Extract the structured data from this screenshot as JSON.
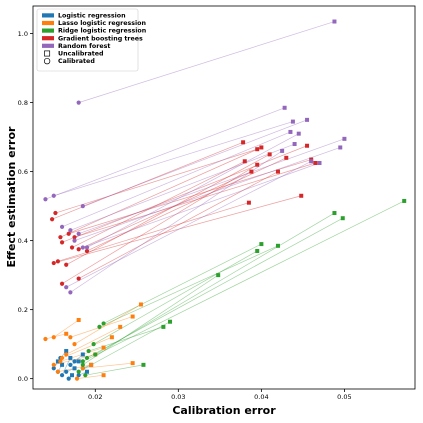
{
  "chart_data": {
    "type": "scatter",
    "xlabel": "Calibration error",
    "ylabel": "Effect estimation error",
    "xlim": [
      0.0125,
      0.0585
    ],
    "ylim": [
      -0.03,
      1.08
    ],
    "xticks": [
      0.02,
      0.03,
      0.04,
      0.05
    ],
    "xtick_labels": [
      "0.02",
      "0.03",
      "0.04",
      "0.05"
    ],
    "yticks": [
      0.0,
      0.2,
      0.4,
      0.6,
      0.8,
      1.0
    ],
    "ytick_labels": [
      "0.0",
      "0.2",
      "0.4",
      "0.6",
      "0.8",
      "1.0"
    ],
    "legend_position": "top-left",
    "marker_legend": [
      {
        "label": "Uncalibrated",
        "marker": "square"
      },
      {
        "label": "Calibrated",
        "marker": "circle"
      }
    ],
    "series": [
      {
        "name": "Logistic regression",
        "color": "#1f77b4",
        "pairs": [
          {
            "uncal": [
              0.0155,
              0.05
            ],
            "cal": [
              0.015,
              0.03
            ]
          },
          {
            "uncal": [
              0.016,
              0.04
            ],
            "cal": [
              0.0155,
              0.02
            ]
          },
          {
            "uncal": [
              0.017,
              0.06
            ],
            "cal": [
              0.016,
              0.01
            ]
          },
          {
            "uncal": [
              0.0175,
              0.03
            ],
            "cal": [
              0.0165,
              0.02
            ]
          },
          {
            "uncal": [
              0.018,
              0.05
            ],
            "cal": [
              0.017,
              0.04
            ]
          },
          {
            "uncal": [
              0.0185,
              0.07
            ],
            "cal": [
              0.0175,
              0.05
            ]
          },
          {
            "uncal": [
              0.019,
              0.02
            ],
            "cal": [
              0.018,
              0.01
            ]
          },
          {
            "uncal": [
              0.0195,
              0.04
            ],
            "cal": [
              0.0185,
              0.03
            ]
          },
          {
            "uncal": [
              0.0165,
              0.08
            ],
            "cal": [
              0.0158,
              0.06
            ]
          },
          {
            "uncal": [
              0.0172,
              0.01
            ],
            "cal": [
              0.0168,
              0.0
            ]
          }
        ]
      },
      {
        "name": "Lasso logistic regression",
        "color": "#ff7f0e",
        "pairs": [
          {
            "uncal": [
              0.0255,
              0.215
            ],
            "cal": [
              0.0175,
              0.1
            ]
          },
          {
            "uncal": [
              0.0245,
              0.18
            ],
            "cal": [
              0.017,
              0.12
            ]
          },
          {
            "uncal": [
              0.023,
              0.15
            ],
            "cal": [
              0.0165,
              0.07
            ]
          },
          {
            "uncal": [
              0.022,
              0.12
            ],
            "cal": [
              0.016,
              0.06
            ]
          },
          {
            "uncal": [
              0.021,
              0.09
            ],
            "cal": [
              0.0158,
              0.05
            ]
          },
          {
            "uncal": [
              0.02,
              0.07
            ],
            "cal": [
              0.015,
              0.04
            ]
          },
          {
            "uncal": [
              0.0195,
              0.04
            ],
            "cal": [
              0.0155,
              0.02
            ]
          },
          {
            "uncal": [
              0.0245,
              0.045
            ],
            "cal": [
              0.0185,
              0.03
            ]
          },
          {
            "uncal": [
              0.018,
              0.17
            ],
            "cal": [
              0.015,
              0.12
            ]
          },
          {
            "uncal": [
              0.0165,
              0.13
            ],
            "cal": [
              0.014,
              0.115
            ]
          },
          {
            "uncal": [
              0.021,
              0.01
            ],
            "cal": [
              0.0178,
              0.0
            ]
          }
        ]
      },
      {
        "name": "Ridge logistic regression",
        "color": "#2ca02c",
        "pairs": [
          {
            "uncal": [
              0.0572,
              0.515
            ],
            "cal": [
              0.0185,
              0.05
            ]
          },
          {
            "uncal": [
              0.0498,
              0.465
            ],
            "cal": [
              0.019,
              0.06
            ]
          },
          {
            "uncal": [
              0.0488,
              0.48
            ],
            "cal": [
              0.02,
              0.07
            ]
          },
          {
            "uncal": [
              0.042,
              0.385
            ],
            "cal": [
              0.0205,
              0.15
            ]
          },
          {
            "uncal": [
              0.04,
              0.39
            ],
            "cal": [
              0.021,
              0.16
            ]
          },
          {
            "uncal": [
              0.0395,
              0.37
            ],
            "cal": [
              0.0198,
              0.1
            ]
          },
          {
            "uncal": [
              0.0348,
              0.3
            ],
            "cal": [
              0.0185,
              0.04
            ]
          },
          {
            "uncal": [
              0.029,
              0.165
            ],
            "cal": [
              0.018,
              0.02
            ]
          },
          {
            "uncal": [
              0.0282,
              0.15
            ],
            "cal": [
              0.0192,
              0.08
            ]
          },
          {
            "uncal": [
              0.0258,
              0.04
            ],
            "cal": [
              0.0188,
              0.01
            ]
          }
        ]
      },
      {
        "name": "Gradient boosting trees",
        "color": "#d62728",
        "pairs": [
          {
            "uncal": [
              0.0378,
              0.685
            ],
            "cal": [
              0.0148,
              0.462
            ]
          },
          {
            "uncal": [
              0.0395,
              0.665
            ],
            "cal": [
              0.0152,
              0.48
            ]
          },
          {
            "uncal": [
              0.04,
              0.67
            ],
            "cal": [
              0.0158,
              0.41
            ]
          },
          {
            "uncal": [
              0.0455,
              0.675
            ],
            "cal": [
              0.016,
              0.395
            ]
          },
          {
            "uncal": [
              0.046,
              0.635
            ],
            "cal": [
              0.0168,
              0.42
            ]
          },
          {
            "uncal": [
              0.0465,
              0.625
            ],
            "cal": [
              0.0175,
              0.41
            ]
          },
          {
            "uncal": [
              0.038,
              0.63
            ],
            "cal": [
              0.0172,
              0.38
            ]
          },
          {
            "uncal": [
              0.0388,
              0.6
            ],
            "cal": [
              0.018,
              0.375
            ]
          },
          {
            "uncal": [
              0.0448,
              0.53
            ],
            "cal": [
              0.015,
              0.335
            ]
          },
          {
            "uncal": [
              0.0385,
              0.51
            ],
            "cal": [
              0.0155,
              0.34
            ]
          },
          {
            "uncal": [
              0.041,
              0.65
            ],
            "cal": [
              0.0165,
              0.33
            ]
          },
          {
            "uncal": [
              0.0395,
              0.62
            ],
            "cal": [
              0.016,
              0.275
            ]
          },
          {
            "uncal": [
              0.043,
              0.64
            ],
            "cal": [
              0.019,
              0.37
            ]
          },
          {
            "uncal": [
              0.042,
              0.6
            ],
            "cal": [
              0.018,
              0.29
            ]
          }
        ]
      },
      {
        "name": "Random forest",
        "color": "#9467bd",
        "pairs": [
          {
            "uncal": [
              0.0488,
              1.035
            ],
            "cal": [
              0.018,
              0.8
            ]
          },
          {
            "uncal": [
              0.0428,
              0.785
            ],
            "cal": [
              0.014,
              0.52
            ]
          },
          {
            "uncal": [
              0.0438,
              0.745
            ],
            "cal": [
              0.015,
              0.53
            ]
          },
          {
            "uncal": [
              0.0455,
              0.75
            ],
            "cal": [
              0.0185,
              0.5
            ]
          },
          {
            "uncal": [
              0.0435,
              0.715
            ],
            "cal": [
              0.016,
              0.44
            ]
          },
          {
            "uncal": [
              0.044,
              0.68
            ],
            "cal": [
              0.017,
              0.43
            ]
          },
          {
            "uncal": [
              0.05,
              0.695
            ],
            "cal": [
              0.018,
              0.42
            ]
          },
          {
            "uncal": [
              0.0495,
              0.67
            ],
            "cal": [
              0.0175,
              0.4
            ]
          },
          {
            "uncal": [
              0.047,
              0.625
            ],
            "cal": [
              0.0185,
              0.38
            ]
          },
          {
            "uncal": [
              0.046,
              0.63
            ],
            "cal": [
              0.0165,
              0.265
            ]
          },
          {
            "uncal": [
              0.0425,
              0.66
            ],
            "cal": [
              0.017,
              0.25
            ]
          },
          {
            "uncal": [
              0.0445,
              0.71
            ],
            "cal": [
              0.019,
              0.38
            ]
          }
        ]
      }
    ]
  }
}
